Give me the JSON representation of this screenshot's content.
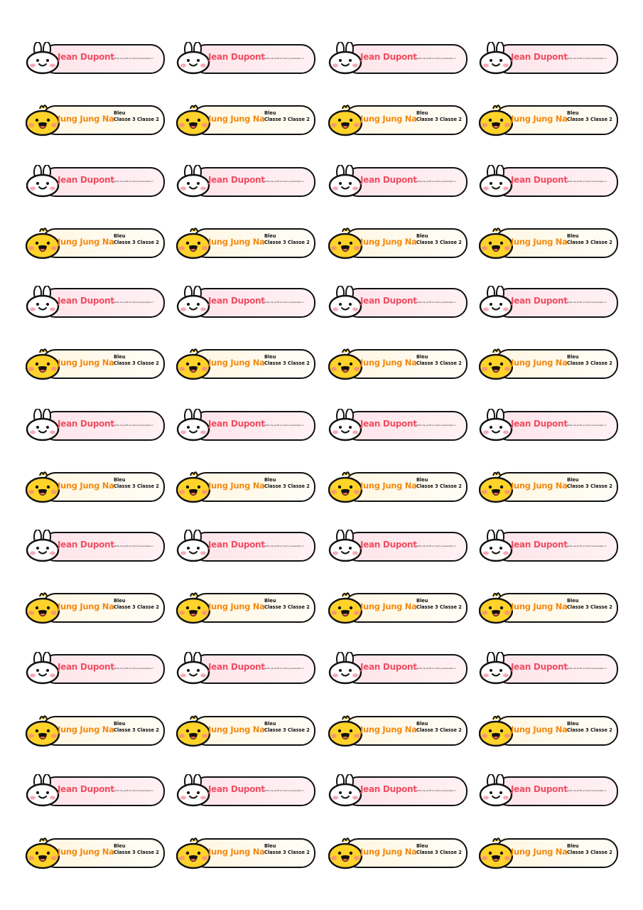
{
  "labels": {
    "bunny": {
      "name": "Jean Dupont",
      "small_text": "Texte de profil en tant qu'exemple ici",
      "colors": {
        "name": "#ef4f63",
        "fill": "#fde4ea"
      },
      "icon": "bunny-face-icon"
    },
    "chick": {
      "name": "Jung Jung Na",
      "line1": "Bleu",
      "line2": "Classe 3 Classe 2",
      "colors": {
        "name": "#f28a12",
        "fill": "#fff7e3"
      },
      "icon": "chick-face-icon"
    }
  },
  "grid": {
    "rows": 14,
    "columns": 4,
    "row_pattern": [
      "bunny",
      "chick"
    ]
  }
}
